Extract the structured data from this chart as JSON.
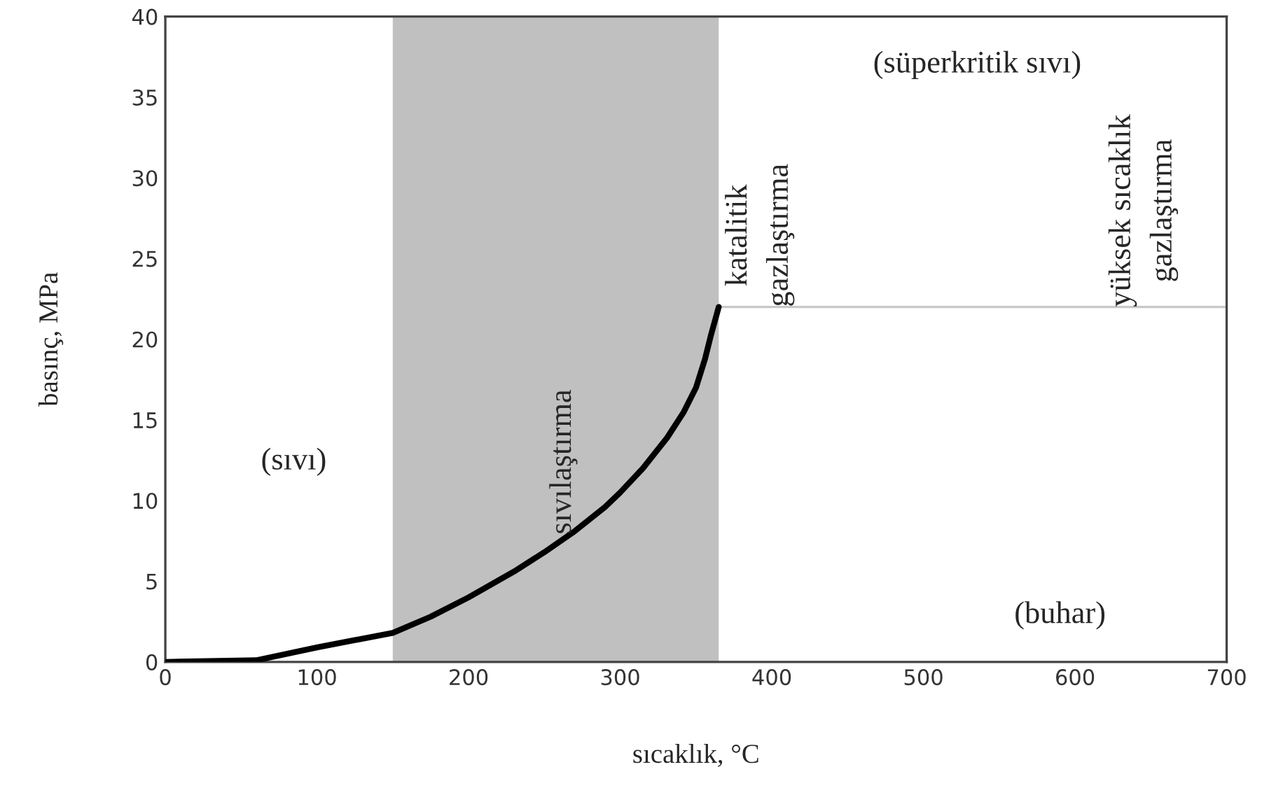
{
  "chart_data": {
    "type": "line",
    "xlabel": "sıcaklık, °C",
    "ylabel": "basınç, MPa",
    "xlim": [
      0,
      700
    ],
    "ylim": [
      0,
      40
    ],
    "xticks": [
      0,
      100,
      200,
      300,
      400,
      500,
      600,
      700
    ],
    "yticks": [
      0,
      5,
      10,
      15,
      20,
      25,
      30,
      35,
      40
    ],
    "grid": false,
    "legend": false,
    "series": [
      {
        "color": "#000000",
        "x": [
          0,
          60,
          100,
          150,
          175,
          200,
          230,
          250,
          270,
          290,
          300,
          315,
          331,
          342,
          350,
          356,
          360,
          365
        ],
        "values": [
          0,
          0.1,
          0.9,
          1.8,
          2.8,
          4.0,
          5.6,
          6.8,
          8.1,
          9.6,
          10.5,
          12.0,
          13.9,
          15.5,
          17.0,
          18.8,
          20.3,
          22
        ]
      },
      {
        "color": "#c8c8c8",
        "x": [
          365,
          700
        ],
        "values": [
          22,
          22
        ]
      }
    ],
    "bands": [
      {
        "axis": "x",
        "from": 150,
        "to": 365,
        "color": "#c0c0c0"
      }
    ],
    "annotations": [
      "(sıvı)",
      "sıvılaştırma",
      {
        "text": "katalitik\ngazlaştırma",
        "x": 392,
        "y": 22
      },
      {
        "text": "yüksek sıcaklık\ngazlaştırma",
        "x": 645,
        "y": 22
      },
      "(süperkritik sıvı)",
      "(buhar)"
    ]
  }
}
